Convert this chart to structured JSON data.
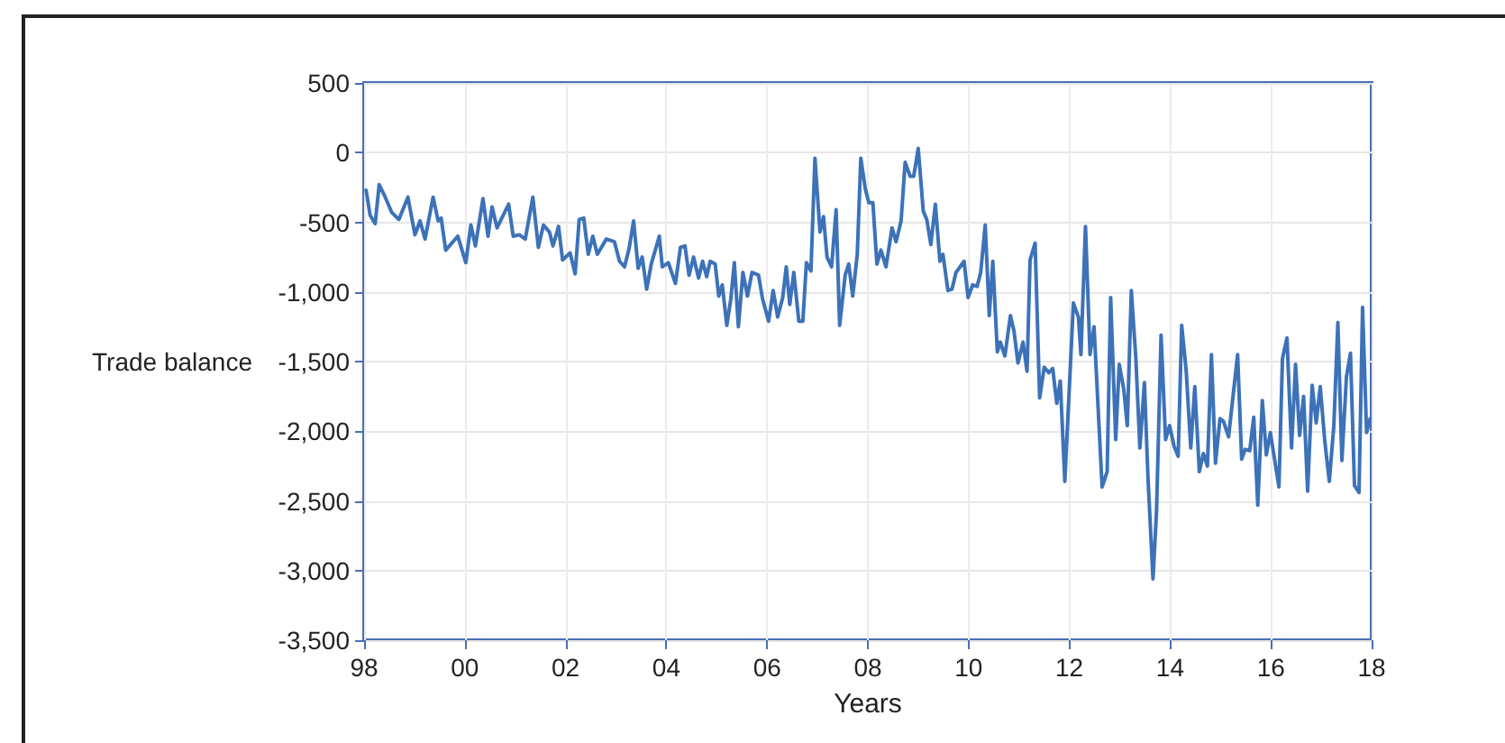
{
  "chart_data": {
    "type": "line",
    "xlabel": "Years",
    "ylabel": "Trade balance",
    "xlim": [
      1998,
      2018
    ],
    "xticks": [
      {
        "value": 1998,
        "label": "98"
      },
      {
        "value": 2000,
        "label": "00"
      },
      {
        "value": 2002,
        "label": "02"
      },
      {
        "value": 2004,
        "label": "04"
      },
      {
        "value": 2006,
        "label": "06"
      },
      {
        "value": 2008,
        "label": "08"
      },
      {
        "value": 2010,
        "label": "10"
      },
      {
        "value": 2012,
        "label": "12"
      },
      {
        "value": 2014,
        "label": "14"
      },
      {
        "value": 2016,
        "label": "16"
      },
      {
        "value": 2018,
        "label": "18"
      }
    ],
    "ylim": [
      -3500,
      500
    ],
    "yticks": [
      500,
      0,
      -500,
      {
        "value": -1000,
        "label": "-1,000"
      },
      {
        "value": -1500,
        "label": "-1,500"
      },
      {
        "value": -2000,
        "label": "-2,000"
      },
      {
        "value": -2500,
        "label": "-2,500"
      },
      {
        "value": -3000,
        "label": "-3,000"
      },
      {
        "value": -3500,
        "label": "-3,500"
      }
    ],
    "grid": true,
    "marker": "none",
    "line_style": "solid",
    "series": [
      {
        "color": "#3d72b9",
        "x": [
          1998.04,
          1998.12,
          1998.22,
          1998.3,
          1998.42,
          1998.55,
          1998.69,
          1998.87,
          1999.01,
          1999.11,
          1999.21,
          1999.37,
          1999.47,
          1999.53,
          1999.62,
          1999.86,
          2000.02,
          2000.12,
          2000.21,
          2000.36,
          2000.46,
          2000.54,
          2000.64,
          2000.87,
          2000.96,
          2001.08,
          2001.2,
          2001.35,
          2001.46,
          2001.56,
          2001.68,
          2001.75,
          2001.86,
          2001.94,
          2002.09,
          2002.19,
          2002.27,
          2002.36,
          2002.45,
          2002.54,
          2002.63,
          2002.81,
          2002.97,
          2003.07,
          2003.17,
          2003.26,
          2003.35,
          2003.44,
          2003.52,
          2003.61,
          2003.7,
          2003.86,
          2003.92,
          2004.04,
          2004.18,
          2004.28,
          2004.37,
          2004.45,
          2004.54,
          2004.64,
          2004.72,
          2004.8,
          2004.87,
          2004.97,
          2005.04,
          2005.11,
          2005.2,
          2005.28,
          2005.35,
          2005.43,
          2005.52,
          2005.61,
          2005.7,
          2005.83,
          2005.91,
          2006.03,
          2006.12,
          2006.21,
          2006.31,
          2006.38,
          2006.45,
          2006.53,
          2006.63,
          2006.71,
          2006.78,
          2006.87,
          2006.95,
          2007.05,
          2007.12,
          2007.19,
          2007.28,
          2007.37,
          2007.44,
          2007.55,
          2007.62,
          2007.7,
          2007.79,
          2007.86,
          2007.95,
          2008.02,
          2008.1,
          2008.18,
          2008.26,
          2008.36,
          2008.48,
          2008.56,
          2008.66,
          2008.74,
          2008.84,
          2008.91,
          2009.0,
          2009.1,
          2009.17,
          2009.25,
          2009.34,
          2009.43,
          2009.49,
          2009.59,
          2009.67,
          2009.75,
          2009.91,
          2009.99,
          2010.08,
          2010.17,
          2010.24,
          2010.33,
          2010.41,
          2010.48,
          2010.57,
          2010.63,
          2010.72,
          2010.83,
          2010.9,
          2010.98,
          2011.08,
          2011.16,
          2011.22,
          2011.32,
          2011.41,
          2011.5,
          2011.59,
          2011.67,
          2011.75,
          2011.82,
          2011.91,
          2012.08,
          2012.18,
          2012.23,
          2012.32,
          2012.41,
          2012.49,
          2012.65,
          2012.75,
          2012.82,
          2012.92,
          2012.99,
          2013.08,
          2013.15,
          2013.23,
          2013.32,
          2013.4,
          2013.49,
          2013.56,
          2013.66,
          2013.73,
          2013.82,
          2013.91,
          2013.99,
          2014.08,
          2014.16,
          2014.23,
          2014.32,
          2014.41,
          2014.49,
          2014.58,
          2014.66,
          2014.74,
          2014.82,
          2014.9,
          2014.99,
          2015.06,
          2015.16,
          2015.34,
          2015.42,
          2015.49,
          2015.58,
          2015.66,
          2015.74,
          2015.83,
          2015.91,
          2015.99,
          2016.16,
          2016.23,
          2016.32,
          2016.41,
          2016.49,
          2016.57,
          2016.65,
          2016.73,
          2016.82,
          2016.9,
          2016.98,
          2017.07,
          2017.16,
          2017.25,
          2017.33,
          2017.41,
          2017.5,
          2017.58,
          2017.66,
          2017.75,
          2017.82,
          2017.9,
          2017.97
        ],
        "values": [
          -270,
          -450,
          -510,
          -230,
          -320,
          -430,
          -480,
          -320,
          -590,
          -490,
          -620,
          -320,
          -490,
          -470,
          -700,
          -600,
          -790,
          -520,
          -670,
          -330,
          -600,
          -390,
          -540,
          -370,
          -600,
          -590,
          -620,
          -320,
          -680,
          -520,
          -570,
          -670,
          -530,
          -770,
          -720,
          -870,
          -480,
          -470,
          -730,
          -600,
          -730,
          -620,
          -640,
          -780,
          -820,
          -690,
          -490,
          -830,
          -750,
          -980,
          -800,
          -600,
          -820,
          -790,
          -940,
          -680,
          -670,
          -880,
          -750,
          -900,
          -780,
          -890,
          -780,
          -800,
          -1030,
          -950,
          -1240,
          -1050,
          -790,
          -1250,
          -860,
          -1030,
          -860,
          -880,
          -1050,
          -1210,
          -990,
          -1180,
          -1040,
          -820,
          -1090,
          -860,
          -1210,
          -1210,
          -790,
          -850,
          -40,
          -570,
          -460,
          -750,
          -820,
          -410,
          -1240,
          -880,
          -800,
          -1030,
          -730,
          -40,
          -260,
          -360,
          -360,
          -800,
          -700,
          -820,
          -540,
          -640,
          -490,
          -70,
          -170,
          -170,
          30,
          -420,
          -480,
          -660,
          -370,
          -780,
          -730,
          -990,
          -980,
          -860,
          -780,
          -1040,
          -950,
          -960,
          -860,
          -520,
          -1170,
          -780,
          -1430,
          -1360,
          -1460,
          -1170,
          -1280,
          -1510,
          -1360,
          -1570,
          -770,
          -650,
          -1760,
          -1540,
          -1580,
          -1550,
          -1800,
          -1640,
          -2360,
          -1080,
          -1180,
          -1450,
          -530,
          -1450,
          -1250,
          -2400,
          -2290,
          -1040,
          -2060,
          -1520,
          -1700,
          -1960,
          -990,
          -1480,
          -2120,
          -1650,
          -2330,
          -3060,
          -2580,
          -1310,
          -2060,
          -1960,
          -2110,
          -2180,
          -1240,
          -1570,
          -2120,
          -1680,
          -2290,
          -2160,
          -2250,
          -1450,
          -2230,
          -1910,
          -1930,
          -2040,
          -1450,
          -2200,
          -2130,
          -2140,
          -1900,
          -2530,
          -1780,
          -2170,
          -2010,
          -2400,
          -1480,
          -1330,
          -2120,
          -1520,
          -2030,
          -1750,
          -2430,
          -1670,
          -1940,
          -1680,
          -2070,
          -2360,
          -1960,
          -1220,
          -2210,
          -1610,
          -1440,
          -2390,
          -2440,
          -1110,
          -2010,
          -1910
        ]
      }
    ]
  }
}
